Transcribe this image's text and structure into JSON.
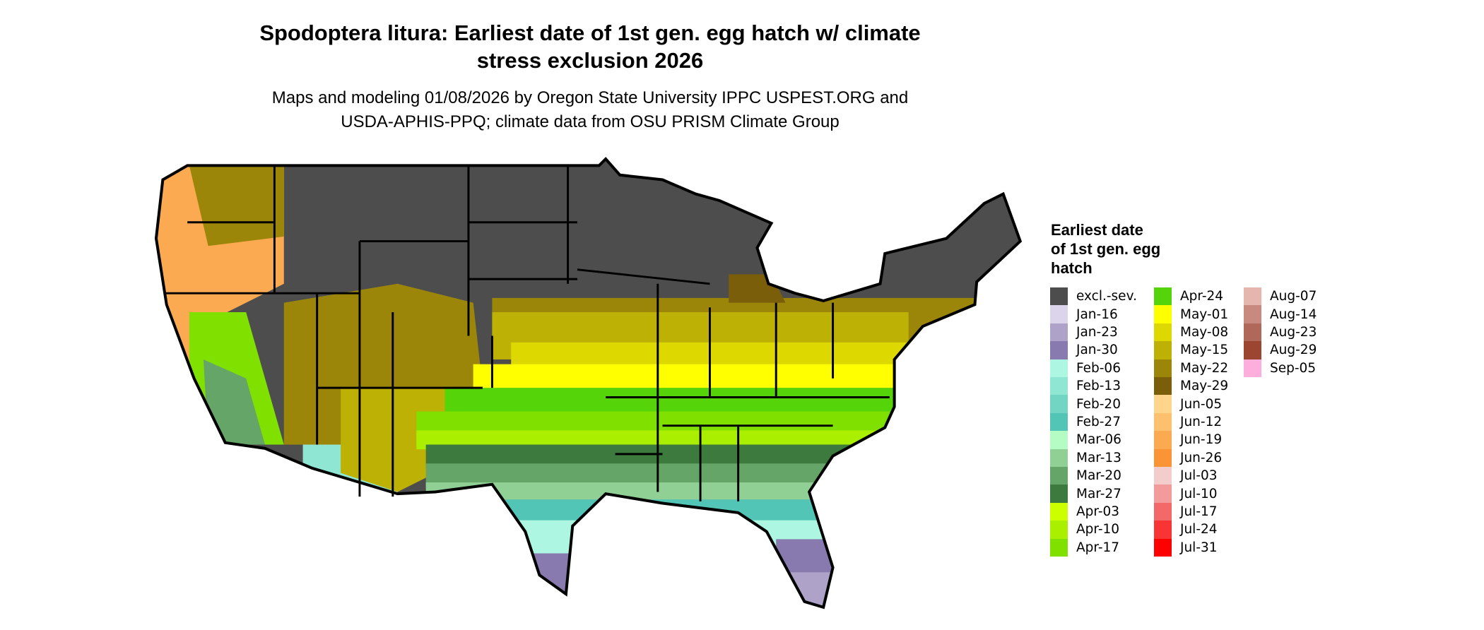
{
  "title_line1": "Spodoptera litura: Earliest date of 1st gen. egg hatch w/ climate",
  "title_line2": "stress exclusion 2026",
  "subtitle_line1": "Maps and modeling 01/08/2026 by Oregon State University IPPC USPEST.ORG and",
  "subtitle_line2": "USDA-APHIS-PPQ; climate data from OSU PRISM Climate Group",
  "legend": {
    "title_lines": [
      "Earliest date",
      "of 1st gen. egg",
      "hatch"
    ],
    "items": [
      {
        "label": "excl.-sev.",
        "color": "#4d4d4d"
      },
      {
        "label": "Jan-16",
        "color": "#dcd4ea"
      },
      {
        "label": "Jan-23",
        "color": "#aea2c8"
      },
      {
        "label": "Jan-30",
        "color": "#8879ae"
      },
      {
        "label": "Feb-06",
        "color": "#adf7e2"
      },
      {
        "label": "Feb-13",
        "color": "#8fe6d2"
      },
      {
        "label": "Feb-20",
        "color": "#72d5c3"
      },
      {
        "label": "Feb-27",
        "color": "#52c5b6"
      },
      {
        "label": "Mar-06",
        "color": "#b5fbc4"
      },
      {
        "label": "Mar-13",
        "color": "#90d095"
      },
      {
        "label": "Mar-20",
        "color": "#65a567"
      },
      {
        "label": "Mar-27",
        "color": "#3c7a3e"
      },
      {
        "label": "Apr-03",
        "color": "#ccff00"
      },
      {
        "label": "Apr-10",
        "color": "#aaee00"
      },
      {
        "label": "Apr-17",
        "color": "#80e000"
      },
      {
        "label": "Apr-24",
        "color": "#55d40a"
      },
      {
        "label": "May-01",
        "color": "#ffff00"
      },
      {
        "label": "May-08",
        "color": "#dcd800"
      },
      {
        "label": "May-15",
        "color": "#bcb104"
      },
      {
        "label": "May-22",
        "color": "#9c860a"
      },
      {
        "label": "May-29",
        "color": "#7a5e0a"
      },
      {
        "label": "Jun-05",
        "color": "#fdd68b"
      },
      {
        "label": "Jun-12",
        "color": "#fdc06e"
      },
      {
        "label": "Jun-19",
        "color": "#fbaa52"
      },
      {
        "label": "Jun-26",
        "color": "#fb9434"
      },
      {
        "label": "Jul-03",
        "color": "#f3cccc"
      },
      {
        "label": "Jul-10",
        "color": "#f39a9a"
      },
      {
        "label": "Jul-17",
        "color": "#f36868"
      },
      {
        "label": "Jul-24",
        "color": "#f93434"
      },
      {
        "label": "Jul-31",
        "color": "#ff0000"
      },
      {
        "label": "Aug-07",
        "color": "#e4b6ae"
      },
      {
        "label": "Aug-14",
        "color": "#c88a7e"
      },
      {
        "label": "Aug-23",
        "color": "#b0685a"
      },
      {
        "label": "Aug-29",
        "color": "#9c4632"
      },
      {
        "label": "Sep-05",
        "color": "#fdaedc"
      }
    ]
  }
}
